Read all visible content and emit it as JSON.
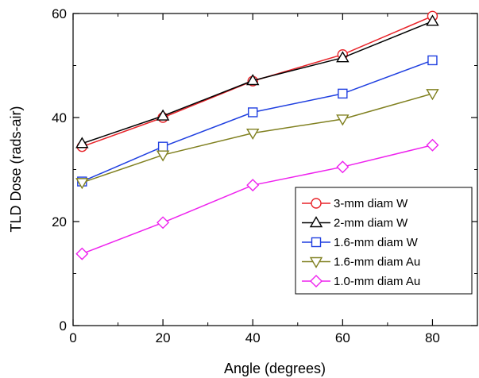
{
  "chart_data": {
    "type": "line",
    "xlabel": "Angle (degrees)",
    "ylabel": "TLD Dose (rads-air)",
    "xlim": [
      0,
      90
    ],
    "ylim": [
      0,
      60
    ],
    "x_ticks": [
      "0",
      "20",
      "40",
      "60",
      "80"
    ],
    "y_ticks": [
      "0",
      "20",
      "40",
      "60"
    ],
    "grid": false,
    "legend_position": "bottom-right",
    "x": [
      2,
      20,
      40,
      60,
      80
    ],
    "series": [
      {
        "name": "3-mm diam W",
        "color": "#e8242a",
        "marker": "circle",
        "values": [
          34.4,
          40.0,
          47.0,
          52.1,
          59.5
        ]
      },
      {
        "name": "2-mm diam W",
        "color": "#000000",
        "marker": "triangle-up",
        "values": [
          35.0,
          40.3,
          47.1,
          51.5,
          58.5
        ]
      },
      {
        "name": "1.6-mm diam W",
        "color": "#1f3fe0",
        "marker": "square",
        "values": [
          27.7,
          34.4,
          41.0,
          44.6,
          51.0
        ]
      },
      {
        "name": "1.6-mm diam Au",
        "color": "#808020",
        "marker": "triangle-down",
        "values": [
          27.5,
          32.8,
          37.0,
          39.7,
          44.6
        ]
      },
      {
        "name": "1.0-mm diam Au",
        "color": "#ee22ee",
        "marker": "diamond",
        "values": [
          13.8,
          19.8,
          27.0,
          30.5,
          34.7
        ]
      }
    ]
  }
}
